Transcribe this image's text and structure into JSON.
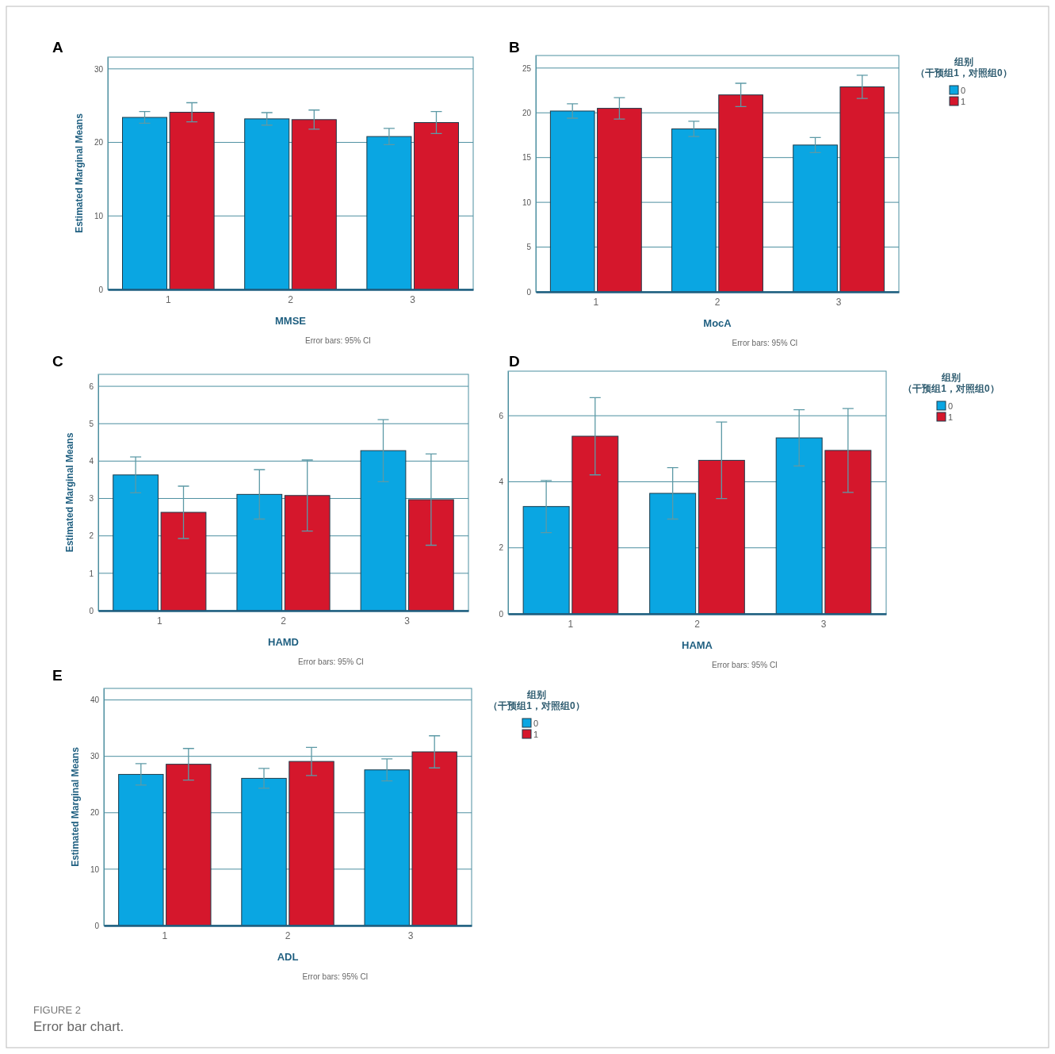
{
  "chart_data": [
    {
      "type": "bar",
      "title": "A",
      "xlabel": "MMSE",
      "ylabel": "Estimated Marginal Means",
      "categories": [
        "1",
        "2",
        "3"
      ],
      "ylim": [
        0,
        31.6
      ],
      "yticks": [
        0,
        10,
        20,
        30
      ],
      "grid": "y",
      "legend": false,
      "annotations": [
        "Error bars: 95% CI"
      ],
      "series": [
        {
          "color": "#0aa6e2",
          "values": [
            23.4,
            23.2,
            20.8
          ],
          "errors": [
            0.8,
            0.85,
            1.1
          ]
        },
        {
          "color": "#d5172c",
          "values": [
            24.1,
            23.1,
            22.7
          ],
          "errors": [
            1.3,
            1.3,
            1.5
          ]
        }
      ]
    },
    {
      "type": "bar",
      "title": "B",
      "xlabel": "MocA",
      "categories": [
        "1",
        "2",
        "3"
      ],
      "ylim": [
        0,
        26.4
      ],
      "yticks": [
        0,
        5,
        10,
        15,
        20,
        25
      ],
      "grid": "y",
      "legend": "top right",
      "legend_title": "组别（干预组1，对照组0）",
      "annotations": [
        "Error bars: 95% CI"
      ],
      "series": [
        {
          "name": "0",
          "color": "#0aa6e2",
          "values": [
            20.2,
            18.2,
            16.4
          ],
          "errors": [
            0.8,
            0.85,
            0.85
          ]
        },
        {
          "name": "1",
          "color": "#d5172c",
          "values": [
            20.5,
            22.0,
            22.9
          ],
          "errors": [
            1.2,
            1.3,
            1.3
          ]
        }
      ]
    },
    {
      "type": "bar",
      "title": "C",
      "xlabel": "HAMD",
      "ylabel": "Estimated Marginal Means",
      "categories": [
        "1",
        "2",
        "3"
      ],
      "ylim": [
        0,
        6.32
      ],
      "yticks": [
        0,
        1,
        2,
        3,
        4,
        5,
        6
      ],
      "grid": "y",
      "legend": false,
      "annotations": [
        "Error bars: 95% CI"
      ],
      "series": [
        {
          "color": "#0aa6e2",
          "values": [
            3.63,
            3.11,
            4.28
          ],
          "errors": [
            0.48,
            0.66,
            0.83
          ]
        },
        {
          "color": "#d5172c",
          "values": [
            2.63,
            3.08,
            2.97
          ],
          "errors": [
            0.7,
            0.95,
            1.22
          ]
        }
      ]
    },
    {
      "type": "bar",
      "title": "D",
      "xlabel": "HAMA",
      "categories": [
        "1",
        "2",
        "3"
      ],
      "ylim": [
        0,
        7.35
      ],
      "yticks": [
        0,
        2,
        4,
        6
      ],
      "grid": "y",
      "legend": "top right",
      "legend_title": "组别（干预组1，对照组0）",
      "annotations": [
        "Error bars: 95% CI"
      ],
      "series": [
        {
          "name": "0",
          "color": "#0aa6e2",
          "values": [
            3.25,
            3.65,
            5.33
          ],
          "errors": [
            0.79,
            0.78,
            0.85
          ]
        },
        {
          "name": "1",
          "color": "#d5172c",
          "values": [
            5.38,
            4.65,
            4.95
          ],
          "errors": [
            1.17,
            1.16,
            1.27
          ]
        }
      ]
    },
    {
      "type": "bar",
      "title": "E",
      "xlabel": "ADL",
      "ylabel": "Estimated Marginal Means",
      "categories": [
        "1",
        "2",
        "3"
      ],
      "ylim": [
        0,
        42.05
      ],
      "yticks": [
        0,
        10,
        20,
        30,
        40
      ],
      "grid": "y",
      "legend": "top right",
      "legend_title": "组别（干预组1，对照组0）",
      "annotations": [
        "Error bars: 95% CI",
        "FIGURE 2",
        "Error bar chart."
      ],
      "series": [
        {
          "name": "0",
          "color": "#0aa6e2",
          "values": [
            26.8,
            26.1,
            27.6
          ],
          "errors": [
            1.9,
            1.75,
            1.95
          ]
        },
        {
          "name": "1",
          "color": "#d5172c",
          "values": [
            28.6,
            29.1,
            30.8
          ],
          "errors": [
            2.8,
            2.5,
            2.85
          ]
        }
      ]
    }
  ]
}
